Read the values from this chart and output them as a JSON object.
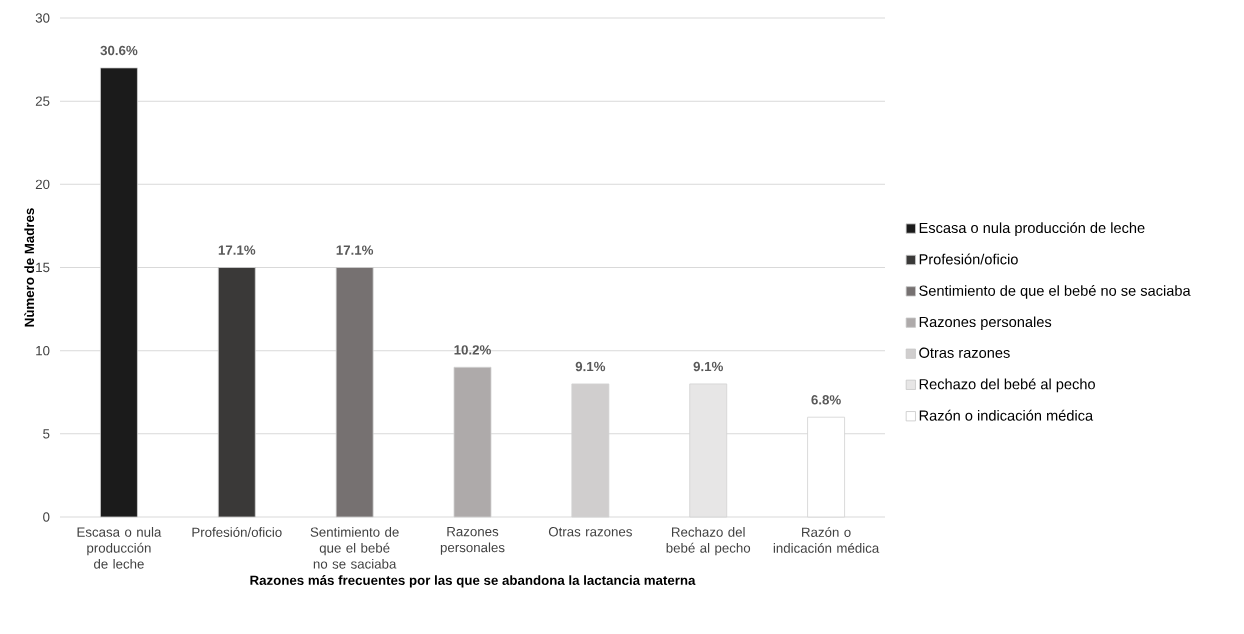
{
  "chart_data": {
    "type": "bar",
    "xlabel": "Razones más frecuentes por las que se abandona la lactancia materna",
    "ylabel": "Nùmero de Madres",
    "categories": [
      "Escasa o nula producción de leche",
      "Profesión/oficio",
      "Sentimiento de que el bebé no se saciaba",
      "Razones personales",
      "Otras razones",
      "Rechazo del bebé al pecho",
      "Razón o indicación médica"
    ],
    "series": [
      {
        "name": "Escasa o nula producción de leche",
        "color": "#1b1b1b",
        "values": [
          27,
          null,
          null,
          null,
          null,
          null,
          null
        ]
      },
      {
        "name": "Profesión/oficio",
        "color": "#3a3938",
        "values": [
          null,
          15,
          null,
          null,
          null,
          null,
          null
        ]
      },
      {
        "name": "Sentimiento de que el bebé no se saciaba",
        "color": "#767171",
        "values": [
          null,
          null,
          15,
          null,
          null,
          null,
          null
        ]
      },
      {
        "name": "Razones personales",
        "color": "#aeaaaa",
        "values": [
          null,
          null,
          null,
          9,
          null,
          null,
          null
        ]
      },
      {
        "name": "Otras razones",
        "color": "#d0cece",
        "values": [
          null,
          null,
          null,
          null,
          8,
          null,
          null
        ]
      },
      {
        "name": "Rechazo del bebé al pecho",
        "color": "#e7e6e6",
        "values": [
          null,
          null,
          null,
          null,
          null,
          8,
          null
        ]
      },
      {
        "name": "Razón o indicación médica",
        "color": "#ffffff",
        "values": [
          null,
          null,
          null,
          null,
          null,
          null,
          6
        ]
      }
    ],
    "annotations": [
      {
        "text": "30.6%",
        "x": "Escasa o nula producción de leche",
        "y": 27
      },
      {
        "text": "17.1%",
        "x": "Profesión/oficio",
        "y": 15
      },
      {
        "text": "17.1%",
        "x": "Sentimiento de que el bebé no se saciaba",
        "y": 15
      },
      {
        "text": "10.2%",
        "x": "Razones personales",
        "y": 9
      },
      {
        "text": "9.1%",
        "x": "Otras razones",
        "y": 8
      },
      {
        "text": "9.1%",
        "x": "Rechazo del bebé al pecho",
        "y": 8
      },
      {
        "text": "6.8%",
        "x": "Razón o indicación médica",
        "y": 6
      }
    ],
    "ylim": [
      0,
      30
    ],
    "yticks": [
      0,
      5,
      10,
      15,
      20,
      25,
      30
    ],
    "grid": "y",
    "legend": "right"
  }
}
